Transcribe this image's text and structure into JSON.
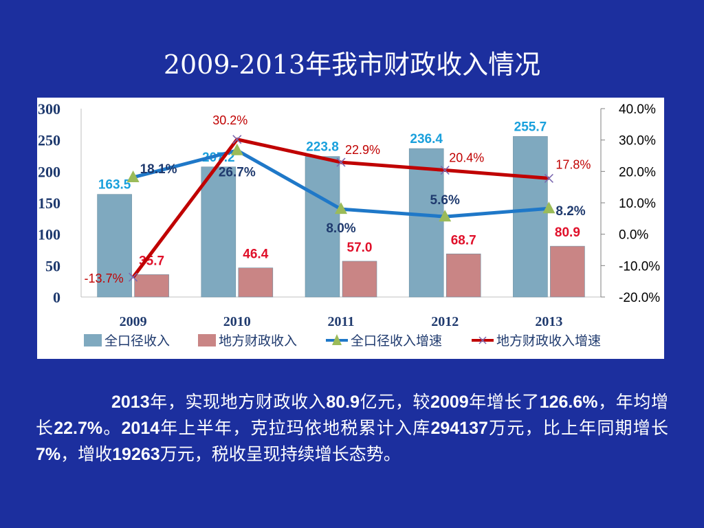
{
  "slide": {
    "title": "2009-2013年我市财政收入情况"
  },
  "chart_data": {
    "type": "bar",
    "title": "",
    "categories": [
      "2009",
      "2010",
      "2011",
      "2012",
      "2013"
    ],
    "ylim_left": [
      0,
      300
    ],
    "yticks_left": [
      "0",
      "50",
      "100",
      "150",
      "200",
      "250",
      "300"
    ],
    "ylim_right": [
      -20,
      40
    ],
    "yticks_right": [
      "-20.0%",
      "-10.0%",
      "0.0%",
      "10.0%",
      "20.0%",
      "30.0%",
      "40.0%"
    ],
    "grid": false,
    "legend_position": "bottom",
    "series": [
      {
        "name": "全口径收入",
        "kind": "bar",
        "axis": "left",
        "color": "#7fa9bf",
        "values": [
          163.5,
          207.2,
          223.8,
          236.4,
          255.7
        ],
        "labels": [
          "163.5",
          "207.2",
          "223.8",
          "236.4",
          "255.7"
        ],
        "label_color": "#1aa0dc"
      },
      {
        "name": "地方财政收入",
        "kind": "bar",
        "axis": "left",
        "color": "#c98585",
        "values": [
          35.7,
          46.4,
          57.0,
          68.7,
          80.9
        ],
        "labels": [
          "35.7",
          "46.4",
          "57.0",
          "68.7",
          "80.9"
        ],
        "label_color": "#e0102a"
      },
      {
        "name": "全口径收入增速",
        "kind": "line",
        "axis": "right",
        "color": "#1f78c8",
        "marker": "triangle",
        "marker_color": "#9bbb59",
        "values": [
          18.1,
          26.7,
          8.0,
          5.6,
          8.2
        ],
        "labels": [
          "18.1%",
          "26.7%",
          "8.0%",
          "5.6%",
          "8.2%"
        ],
        "label_color": "#1f3a6e"
      },
      {
        "name": "地方财政收入增速",
        "kind": "line",
        "axis": "right",
        "color": "#c00000",
        "marker": "x",
        "marker_color": "#7b68b0",
        "values": [
          -13.7,
          30.2,
          22.9,
          20.4,
          17.8
        ],
        "labels": [
          "-13.7%",
          "30.2%",
          "22.9%",
          "20.4%",
          "17.8%"
        ],
        "label_color": "#c00000"
      }
    ]
  },
  "summary": {
    "t1": "2013",
    "t2": "年，实现地方财政收入",
    "t3": "80.9",
    "t4": "亿元，较",
    "t5": "2009",
    "t6": "年增长了",
    "t7": "126.6%",
    "t8": "，年均增长",
    "t9": "22.7%",
    "t10": "。",
    "t11": "2014",
    "t12": "年上半年，克拉玛依地税累计入库",
    "t13": "294137",
    "t14": "万元，比上年同期增长",
    "t15": "7%",
    "t16": "，增收",
    "t17": "19263",
    "t18": "万元，税收呈现持续增长态势。"
  }
}
